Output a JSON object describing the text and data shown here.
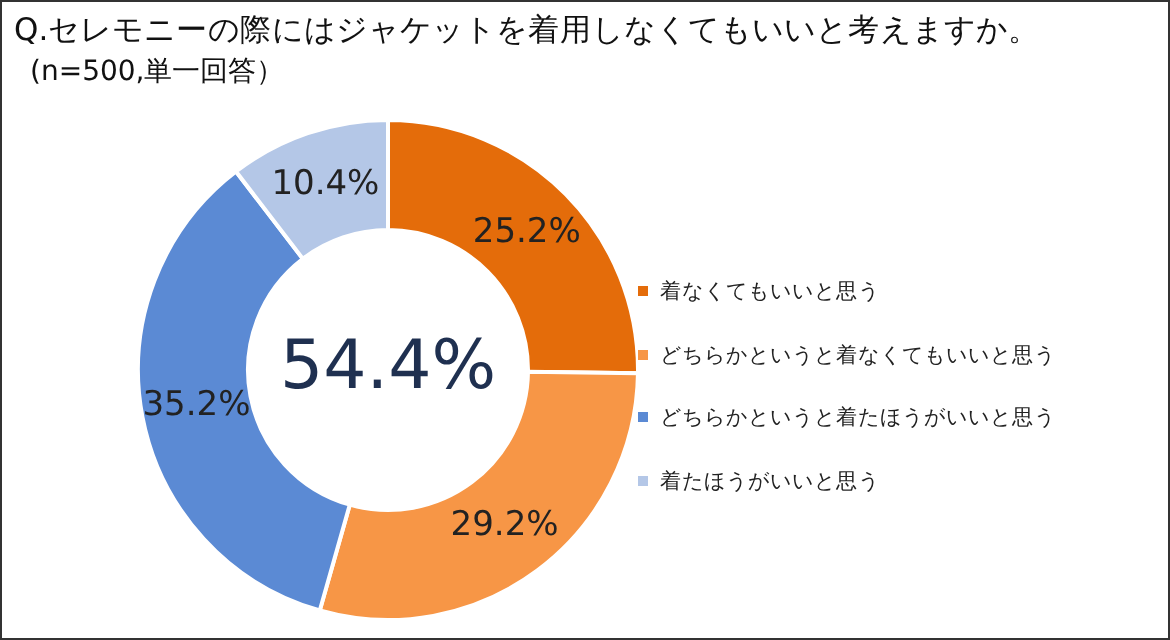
{
  "chart_data": {
    "type": "donut",
    "title": "Q.セレモニーの際にはジャケットを着用しなくてもいいと考えますか。",
    "subtitle": "(n=500,単一回答）",
    "categories": [
      "着なくてもいいと思う",
      "どちらかというと着なくてもいいと思う",
      "どちらかというと着たほうがいいと思う",
      "着たほうがいいと思う"
    ],
    "values": [
      25.2,
      29.2,
      35.2,
      10.4
    ],
    "colors": [
      "#e46c0a",
      "#f79646",
      "#5b8ad4",
      "#b4c7e7"
    ],
    "value_labels": [
      "25.2%",
      "29.2%",
      "35.2%",
      "10.4%"
    ],
    "annotations": [
      "54.4%"
    ],
    "legend": "right"
  }
}
